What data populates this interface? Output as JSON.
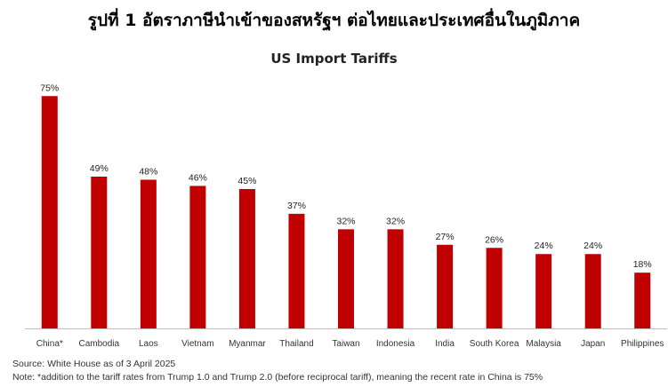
{
  "heading": "รูปที่ 1 อัตราภาษีนำเข้าของสหรัฐฯ ต่อไทยและประเทศอื่นในภูมิภาค",
  "footnotes": {
    "source": "Source: White House as of 3 April 2025",
    "note": "Note: *addition to the tariff rates from Trump 1.0 and Trump 2.0 (before reciprocal tariff), meaning the recent rate in China is 75%"
  },
  "colors": {
    "bar": "#c00000",
    "axis": "#bfbfbf"
  },
  "chart_data": {
    "type": "bar",
    "title": "US Import Tariffs",
    "xlabel": "",
    "ylabel": "",
    "categories": [
      "China*",
      "Cambodia",
      "Laos",
      "Vietnam",
      "Myanmar",
      "Thailand",
      "Taiwan",
      "Indonesia",
      "India",
      "South Korea",
      "Malaysia",
      "Japan",
      "Philippines"
    ],
    "values": [
      75,
      49,
      48,
      46,
      45,
      37,
      32,
      32,
      27,
      26,
      24,
      24,
      18
    ],
    "value_labels": [
      "75%",
      "49%",
      "48%",
      "46%",
      "45%",
      "37%",
      "32%",
      "32%",
      "27%",
      "26%",
      "24%",
      "24%",
      "18%"
    ],
    "ylim": [
      0,
      80
    ],
    "grid": false,
    "legend": "none"
  }
}
